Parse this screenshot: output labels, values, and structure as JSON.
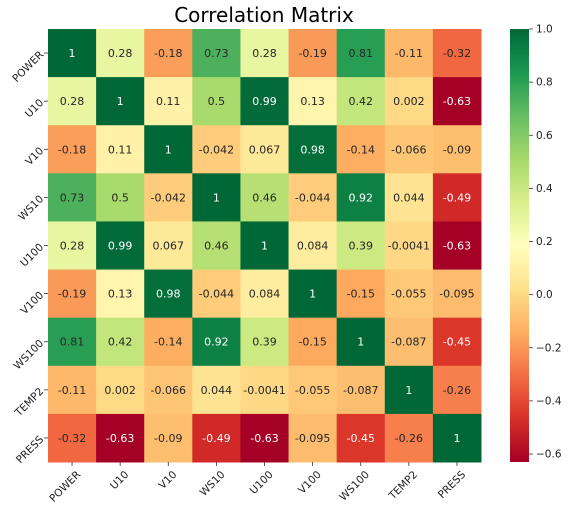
{
  "chart_data": {
    "type": "heatmap",
    "title": "Correlation Matrix",
    "rows": [
      "POWER",
      "U10",
      "V10",
      "WS10",
      "U100",
      "V100",
      "WS100",
      "TEMP2",
      "PRESS"
    ],
    "columns": [
      "POWER",
      "U10",
      "V10",
      "WS10",
      "U100",
      "V100",
      "WS100",
      "TEMP2",
      "PRESS"
    ],
    "values": [
      [
        1,
        0.28,
        -0.18,
        0.73,
        0.28,
        -0.19,
        0.81,
        -0.11,
        -0.32
      ],
      [
        0.28,
        1,
        0.11,
        0.5,
        0.99,
        0.13,
        0.42,
        0.002,
        -0.63
      ],
      [
        -0.18,
        0.11,
        1,
        -0.042,
        0.067,
        0.98,
        -0.14,
        -0.066,
        -0.09
      ],
      [
        0.73,
        0.5,
        -0.042,
        1,
        0.46,
        -0.044,
        0.92,
        0.044,
        -0.49
      ],
      [
        0.28,
        0.99,
        0.067,
        0.46,
        1,
        0.084,
        0.39,
        -0.0041,
        -0.63
      ],
      [
        -0.19,
        0.13,
        0.98,
        -0.044,
        0.084,
        1,
        -0.15,
        -0.055,
        -0.095
      ],
      [
        0.81,
        0.42,
        -0.14,
        0.92,
        0.39,
        -0.15,
        1,
        -0.087,
        -0.45
      ],
      [
        -0.11,
        0.002,
        -0.066,
        0.044,
        -0.0041,
        -0.055,
        -0.087,
        1,
        -0.26
      ],
      [
        -0.32,
        -0.63,
        -0.09,
        -0.49,
        -0.63,
        -0.095,
        -0.45,
        -0.26,
        1
      ]
    ],
    "annotations": [
      [
        "1",
        "0.28",
        "-0.18",
        "0.73",
        "0.28",
        "-0.19",
        "0.81",
        "-0.11",
        "-0.32"
      ],
      [
        "0.28",
        "1",
        "0.11",
        "0.5",
        "0.99",
        "0.13",
        "0.42",
        "0.002",
        "-0.63"
      ],
      [
        "-0.18",
        "0.11",
        "1",
        "-0.042",
        "0.067",
        "0.98",
        "-0.14",
        "-0.066",
        "-0.09"
      ],
      [
        "0.73",
        "0.5",
        "-0.042",
        "1",
        "0.46",
        "-0.044",
        "0.92",
        "0.044",
        "-0.49"
      ],
      [
        "0.28",
        "0.99",
        "0.067",
        "0.46",
        "1",
        "0.084",
        "0.39",
        "-0.0041",
        "-0.63"
      ],
      [
        "-0.19",
        "0.13",
        "0.98",
        "-0.044",
        "0.084",
        "1",
        "-0.15",
        "-0.055",
        "-0.095"
      ],
      [
        "0.81",
        "0.42",
        "-0.14",
        "0.92",
        "0.39",
        "-0.15",
        "1",
        "-0.087",
        "-0.45"
      ],
      [
        "-0.11",
        "0.002",
        "-0.066",
        "0.044",
        "-0.0041",
        "-0.055",
        "-0.087",
        "1",
        "-0.26"
      ],
      [
        "-0.32",
        "-0.63",
        "-0.09",
        "-0.49",
        "-0.63",
        "-0.095",
        "-0.45",
        "-0.26",
        "1"
      ]
    ],
    "colormap": "RdYlGn",
    "vmin": -0.63,
    "vmax": 1,
    "colorbar_ticks": [
      1.0,
      0.8,
      0.6,
      0.4,
      0.2,
      0.0,
      -0.2,
      -0.4,
      -0.6
    ],
    "colorbar_tick_labels": [
      "1.0",
      "0.8",
      "0.6",
      "0.4",
      "0.2",
      "0.0",
      "−0.2",
      "−0.4",
      "−0.6"
    ],
    "legend": "colorbar right",
    "grid": false
  }
}
